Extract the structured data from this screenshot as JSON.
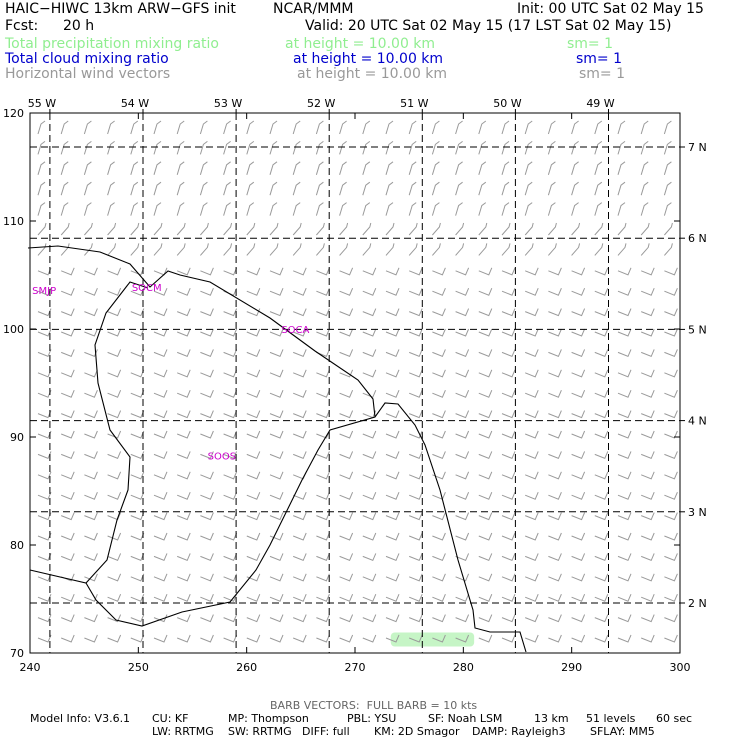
{
  "header": {
    "model_title": "HAIC−HIWC 13km ARW−GFS init",
    "org": "NCAR/MMM",
    "init": "Init: 00 UTC Sat 02 May 15",
    "fcst_label": "Fcst:",
    "fcst_value": "20 h",
    "valid": "Valid: 20 UTC Sat 02 May 15 (17 LST Sat 02 May 15)"
  },
  "fields": [
    {
      "name": "Total precipitation mixing ratio",
      "height": "at height = 10.00 km",
      "sm": "sm= 1",
      "color": "#90ee90"
    },
    {
      "name": "Total cloud mixing ratio",
      "height": "at height = 10.00 km",
      "sm": "sm= 1",
      "color": "#0000cc"
    },
    {
      "name": "Horizontal wind vectors",
      "height": "at height = 10.00 km",
      "sm": "sm= 1",
      "color": "#999999"
    }
  ],
  "map": {
    "x_grid": {
      "min": 240,
      "max": 300,
      "ticks": [
        "240",
        "250",
        "260",
        "270",
        "280",
        "290",
        "300"
      ]
    },
    "y_grid": {
      "min": 70,
      "max": 120,
      "ticks": [
        "70",
        "80",
        "90",
        "100",
        "110",
        "120"
      ]
    },
    "lon_labels": [
      {
        "text": "55 W",
        "lon": -55
      },
      {
        "text": "54 W",
        "lon": -54
      },
      {
        "text": "53 W",
        "lon": -53
      },
      {
        "text": "52 W",
        "lon": -52
      },
      {
        "text": "51 W",
        "lon": -51
      },
      {
        "text": "50 W",
        "lon": -50
      },
      {
        "text": "49 W",
        "lon": -49
      }
    ],
    "lat_labels": [
      {
        "text": "7 N",
        "lat": 7
      },
      {
        "text": "6 N",
        "lat": 6
      },
      {
        "text": "5 N",
        "lat": 5
      },
      {
        "text": "4 N",
        "lat": 4
      },
      {
        "text": "3 N",
        "lat": 3
      },
      {
        "text": "2 N",
        "lat": 2
      }
    ],
    "sites": [
      {
        "code": "SMJP",
        "x": 240.2,
        "y": 103.6
      },
      {
        "code": "SOCM",
        "x": 249.4,
        "y": 103.9
      },
      {
        "code": "SOCA",
        "x": 263.2,
        "y": 100.0
      },
      {
        "code": "SOOS",
        "x": 256.4,
        "y": 88.3
      }
    ],
    "precip_patch": {
      "x1": 273.3,
      "x2": 281.0,
      "y1": 70.6,
      "y2": 71.9,
      "color": "#c6f5c6"
    },
    "wind_color": "#9a9a9a",
    "coast_color": "#000000"
  },
  "footer": {
    "barb_note": "BARB VECTORS:  FULL BARB = 10 kts",
    "line1": [
      "Model Info: V3.6.1",
      "CU: KF",
      "MP: Thompson",
      "PBL: YSU",
      "SF: Noah LSM",
      "13 km",
      "51 levels",
      "60 sec"
    ],
    "line2": [
      "LW: RRTMG",
      "SW: RRTMG",
      "DIFF: full",
      "KM: 2D Smagor",
      "DAMP: Rayleigh3",
      "SFLAY: MM5"
    ]
  }
}
